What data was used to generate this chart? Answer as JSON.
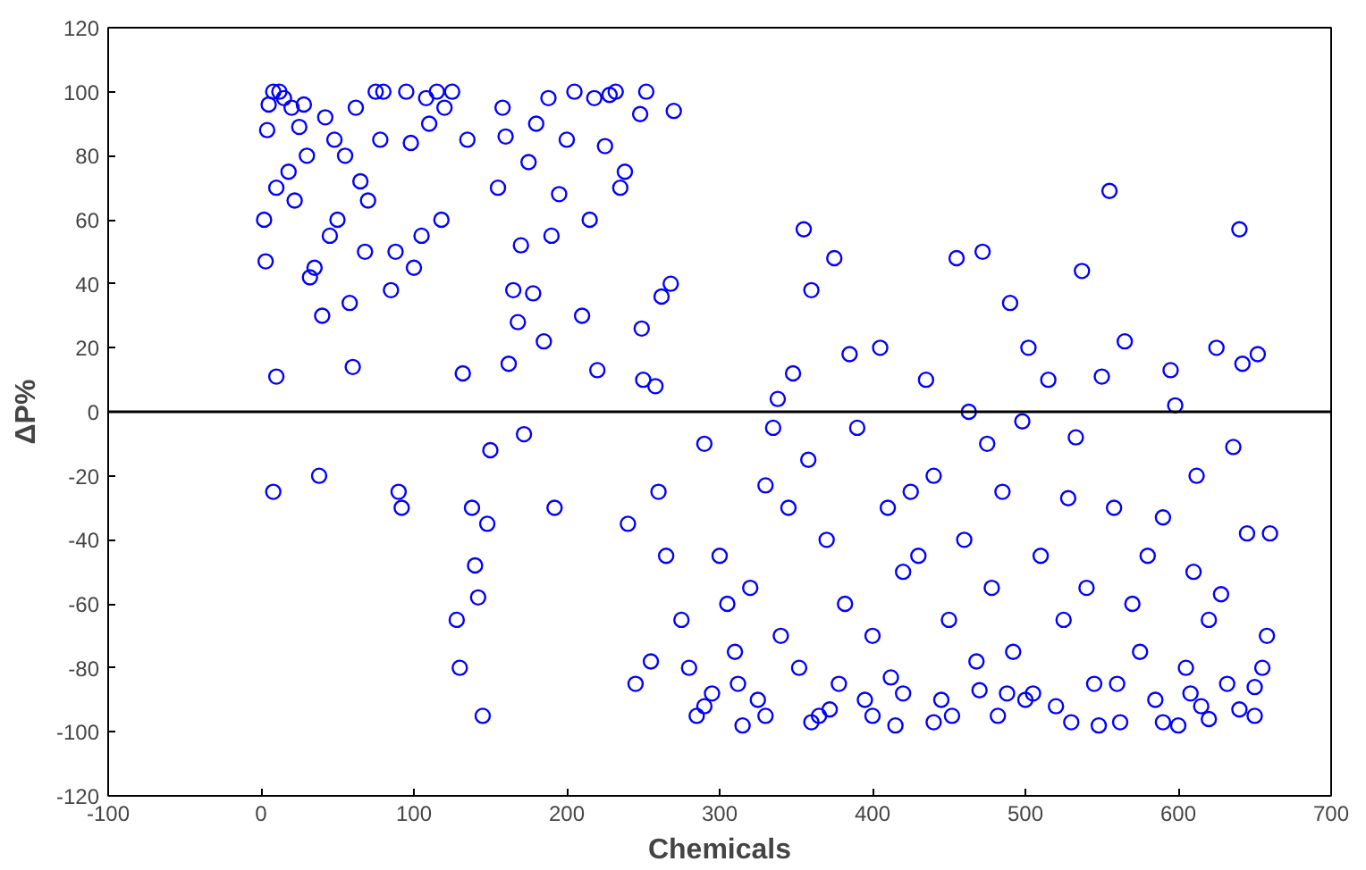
{
  "chart_data": {
    "type": "scatter",
    "xlabel": "Chemicals",
    "ylabel": "ΔP%",
    "xlim": [
      -100,
      700
    ],
    "ylim": [
      -120,
      120
    ],
    "xticks": [
      -100,
      0,
      100,
      200,
      300,
      400,
      500,
      600,
      700
    ],
    "yticks": [
      -120,
      -100,
      -80,
      -60,
      -40,
      -20,
      0,
      20,
      40,
      60,
      80,
      100,
      120
    ],
    "marker": "circle",
    "grid": false,
    "ref_lines": [
      {
        "axis": "y",
        "value": 0,
        "color": "#000000"
      }
    ],
    "series": [
      {
        "color": "#0000ff",
        "x": [
          2,
          3,
          4,
          5,
          8,
          8,
          10,
          10,
          12,
          15,
          18,
          20,
          22,
          25,
          28,
          30,
          32,
          35,
          38,
          40,
          42,
          45,
          48,
          50,
          55,
          58,
          60,
          62,
          65,
          68,
          70,
          75,
          78,
          80,
          85,
          88,
          90,
          92,
          95,
          98,
          100,
          105,
          108,
          110,
          115,
          118,
          120,
          125,
          128,
          130,
          132,
          135,
          138,
          140,
          142,
          145,
          148,
          150,
          155,
          158,
          160,
          162,
          165,
          168,
          170,
          172,
          175,
          178,
          180,
          185,
          188,
          190,
          192,
          195,
          200,
          205,
          210,
          215,
          218,
          220,
          225,
          228,
          232,
          235,
          238,
          240,
          245,
          248,
          249,
          250,
          252,
          255,
          258,
          260,
          262,
          265,
          268,
          270,
          275,
          280,
          285,
          290,
          295,
          300,
          305,
          310,
          315,
          320,
          325,
          330,
          335,
          338,
          340,
          345,
          348,
          352,
          355,
          358,
          360,
          365,
          370,
          375,
          378,
          382,
          385,
          390,
          395,
          400,
          405,
          410,
          415,
          420,
          425,
          430,
          435,
          440,
          445,
          450,
          455,
          460,
          463,
          468,
          472,
          475,
          478,
          482,
          485,
          490,
          492,
          498,
          502,
          505,
          510,
          515,
          520,
          525,
          528,
          533,
          537,
          540,
          545,
          550,
          555,
          558,
          562,
          565,
          570,
          575,
          580,
          585,
          590,
          595,
          598,
          600,
          605,
          610,
          612,
          615,
          620,
          625,
          628,
          632,
          636,
          640,
          642,
          645,
          650,
          652,
          655,
          658,
          660,
          290,
          330,
          360,
          400,
          420,
          440,
          470,
          500,
          530,
          560,
          590,
          620,
          650,
          312,
          372,
          412,
          452,
          488,
          548,
          608,
          640
        ],
        "values": [
          60,
          47,
          88,
          96,
          100,
          -25,
          70,
          11,
          100,
          98,
          75,
          95,
          66,
          89,
          96,
          80,
          42,
          45,
          -20,
          30,
          92,
          55,
          85,
          60,
          80,
          34,
          14,
          95,
          72,
          50,
          66,
          100,
          85,
          100,
          38,
          50,
          -25,
          -30,
          100,
          84,
          45,
          55,
          98,
          90,
          100,
          60,
          95,
          100,
          -65,
          -80,
          12,
          85,
          -30,
          -48,
          -58,
          -95,
          -35,
          -12,
          70,
          95,
          86,
          15,
          38,
          28,
          52,
          -7,
          78,
          37,
          90,
          22,
          98,
          55,
          -30,
          68,
          85,
          100,
          30,
          60,
          98,
          13,
          83,
          99,
          100,
          70,
          75,
          -35,
          -85,
          93,
          26,
          10,
          100,
          -78,
          8,
          -25,
          36,
          -45,
          40,
          94,
          -65,
          -80,
          -95,
          -10,
          -88,
          -45,
          -60,
          -75,
          -98,
          -55,
          -90,
          -23,
          -5,
          4,
          -70,
          -30,
          12,
          -80,
          57,
          -15,
          38,
          -95,
          -40,
          48,
          -85,
          -60,
          18,
          -5,
          -90,
          -70,
          20,
          -30,
          -98,
          -50,
          -25,
          -45,
          10,
          -20,
          -90,
          -65,
          48,
          -40,
          0,
          -78,
          50,
          -10,
          -55,
          -95,
          -25,
          34,
          -75,
          -3,
          20,
          -88,
          -45,
          10,
          -92,
          -65,
          -27,
          -8,
          44,
          -55,
          -85,
          11,
          69,
          -30,
          -97,
          22,
          -60,
          -75,
          -45,
          -90,
          -33,
          13,
          2,
          -98,
          -80,
          -50,
          -20,
          -92,
          -65,
          20,
          -57,
          -85,
          -11,
          57,
          15,
          -38,
          -95,
          18,
          -80,
          -70,
          -38,
          -92,
          -95,
          -97,
          -95,
          -88,
          -97,
          -87,
          -90,
          -97,
          -85,
          -97,
          -96,
          -86,
          -85,
          -93,
          -83,
          -95,
          -88,
          -98,
          -88,
          -93
        ]
      }
    ]
  }
}
